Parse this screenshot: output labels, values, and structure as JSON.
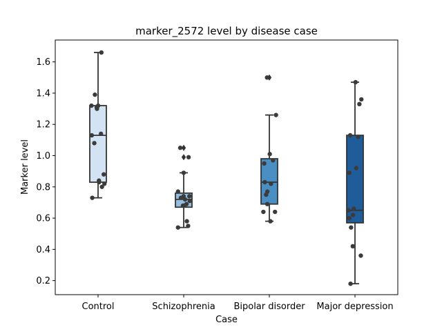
{
  "chart_data": {
    "type": "box",
    "title": "marker_2572 level by disease case",
    "xlabel": "Case",
    "ylabel": "Marker level",
    "ylim": [
      0.11,
      1.74
    ],
    "yticks": [
      0.2,
      0.4,
      0.6,
      0.8,
      1.0,
      1.2,
      1.4,
      1.6
    ],
    "ytick_labels": [
      "0.2",
      "0.4",
      "0.6",
      "0.8",
      "1.0",
      "1.2",
      "1.4",
      "1.6"
    ],
    "categories": [
      "Control",
      "Schizophrenia",
      "Bipolar disorder",
      "Major depression"
    ],
    "box_colors": [
      "#d4e3f3",
      "#93bedf",
      "#4a8fc4",
      "#1f5c9a"
    ],
    "point_color": "#3b3b3b",
    "line_color": "#333333",
    "grid": false,
    "legend": "none",
    "boxes": [
      {
        "category": "Control",
        "whislo": 0.73,
        "q1": 0.83,
        "med": 1.13,
        "q3": 1.32,
        "whishi": 1.66,
        "fliers": [],
        "points": [
          1.66,
          1.39,
          1.32,
          1.32,
          1.31,
          1.3,
          1.14,
          1.13,
          1.08,
          0.88,
          0.84,
          0.83,
          0.82,
          0.8,
          0.73
        ]
      },
      {
        "category": "Schizophrenia",
        "whislo": 0.54,
        "q1": 0.67,
        "med": 0.72,
        "q3": 0.76,
        "whishi": 0.89,
        "fliers": [
          1.05,
          0.99
        ],
        "points": [
          1.05,
          0.99,
          0.89,
          0.77,
          0.74,
          0.74,
          0.73,
          0.72,
          0.71,
          0.69,
          0.68,
          0.68,
          0.58,
          0.55,
          0.54
        ]
      },
      {
        "category": "Bipolar disorder",
        "whislo": 0.58,
        "q1": 0.69,
        "med": 0.83,
        "q3": 0.98,
        "whishi": 1.26,
        "fliers": [
          1.5
        ],
        "points": [
          1.5,
          1.26,
          1.01,
          0.97,
          0.95,
          0.83,
          0.82,
          0.77,
          0.75,
          0.69,
          0.64,
          0.64,
          0.58
        ]
      },
      {
        "category": "Major depression",
        "whislo": 0.18,
        "q1": 0.57,
        "med": 0.65,
        "q3": 1.13,
        "whishi": 1.47,
        "fliers": [],
        "points": [
          1.47,
          1.36,
          1.33,
          1.13,
          1.12,
          0.92,
          0.89,
          0.66,
          0.65,
          0.62,
          0.6,
          0.54,
          0.42,
          0.36,
          0.18
        ]
      }
    ]
  }
}
